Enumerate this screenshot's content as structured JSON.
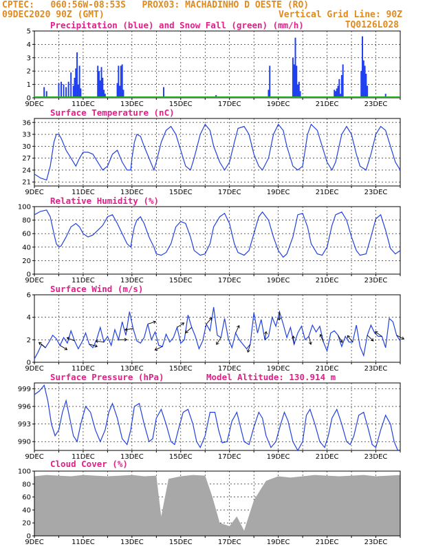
{
  "header": {
    "line1_left": "CPTEC:   060:56W-08:53S   PROX03: MACHADINHO D OESTE (RO)",
    "line2_left": "09DEC2020 90Z (GMT)",
    "line2_right": "Vertical Grid Line: 90Z",
    "line3_right": "TQ0126L028"
  },
  "colors": {
    "header": "#e08a1e",
    "title": "#e0208a",
    "line": "#2040e0",
    "precip_bar": "#2040f0",
    "snow": "#20b020",
    "cloud": "#a8a8a8",
    "grid": "#000000"
  },
  "x_tick_labels": [
    "9DEC",
    "11DEC",
    "13DEC",
    "15DEC",
    "17DEC",
    "19DEC",
    "21DEC",
    "23DEC"
  ],
  "chart_data": [
    {
      "type": "bar",
      "id": "precip",
      "title": "Precipitation (blue) and Snow Fall (green) (mm/h)",
      "ylim": [
        0,
        5
      ],
      "yticks": [
        0,
        1,
        2,
        3,
        4,
        5
      ],
      "x_range_days": [
        0,
        15
      ],
      "series": [
        {
          "name": "Precipitation",
          "x": [
            0.4,
            0.5,
            1.0,
            1.1,
            1.2,
            1.3,
            1.4,
            1.5,
            1.6,
            1.65,
            1.7,
            1.75,
            1.8,
            1.85,
            1.9,
            2.6,
            2.65,
            2.7,
            2.75,
            2.8,
            2.85,
            2.9,
            3.4,
            3.45,
            3.5,
            3.55,
            3.6,
            3.65,
            5.3,
            7.45,
            9.6,
            9.65,
            10.6,
            10.65,
            10.7,
            10.75,
            10.8,
            10.85,
            10.9,
            12.3,
            12.35,
            12.4,
            12.45,
            12.5,
            12.55,
            12.6,
            12.65,
            13.4,
            13.45,
            13.5,
            13.55,
            13.6,
            13.65,
            14.4
          ],
          "y": [
            0.8,
            0.5,
            1.1,
            1.2,
            1.0,
            0.8,
            1.2,
            1.9,
            0.9,
            1.5,
            2.2,
            3.4,
            1.0,
            2.4,
            0.7,
            2.4,
            2.0,
            1.3,
            2.3,
            1.5,
            0.6,
            0.3,
            1.1,
            2.4,
            0.9,
            2.4,
            2.5,
            0.6,
            0.8,
            0.2,
            0.6,
            2.4,
            3.0,
            2.5,
            4.5,
            2.4,
            1.0,
            1.2,
            0.5,
            0.6,
            0.5,
            0.7,
            0.9,
            1.4,
            0.3,
            1.7,
            2.5,
            2.0,
            4.6,
            2.8,
            2.4,
            1.8,
            0.9,
            0.3
          ]
        },
        {
          "name": "Snow Fall",
          "x": [
            0,
            15
          ],
          "y": [
            0.05,
            0.05
          ]
        }
      ]
    },
    {
      "type": "line",
      "id": "temp",
      "title": "Surface Temperature (nC)",
      "ylim": [
        20,
        37
      ],
      "yticks": [
        21,
        24,
        27,
        30,
        33,
        36
      ],
      "x": [
        0,
        0.25,
        0.5,
        0.65,
        0.8,
        0.9,
        1.0,
        1.1,
        1.3,
        1.5,
        1.7,
        1.85,
        2.0,
        2.2,
        2.4,
        2.6,
        2.8,
        3.0,
        3.2,
        3.4,
        3.6,
        3.8,
        3.95,
        4.0,
        4.1,
        4.2,
        4.35,
        4.5,
        4.7,
        4.9,
        5.0,
        5.2,
        5.4,
        5.6,
        5.8,
        6.0,
        6.2,
        6.4,
        6.55,
        6.8,
        7.0,
        7.2,
        7.35,
        7.6,
        7.8,
        8.0,
        8.2,
        8.35,
        8.6,
        8.8,
        9.0,
        9.2,
        9.35,
        9.6,
        9.8,
        10.0,
        10.2,
        10.35,
        10.6,
        10.8,
        11.0,
        11.2,
        11.35,
        11.6,
        11.8,
        12.0,
        12.2,
        12.35,
        12.6,
        12.8,
        13.0,
        13.2,
        13.35,
        13.6,
        13.8,
        14.0,
        14.2,
        14.4,
        14.6,
        14.8,
        15.0
      ],
      "y": [
        23,
        22,
        21.5,
        25,
        31,
        33,
        33,
        32,
        29,
        27,
        25,
        27,
        28.5,
        28.5,
        28,
        26,
        24,
        25,
        28,
        29,
        26,
        24,
        24,
        27,
        31,
        33,
        32.5,
        30,
        27,
        24,
        26,
        31,
        34,
        35,
        33,
        29,
        25,
        24,
        27,
        33,
        35.5,
        34,
        30,
        26,
        24,
        26,
        31,
        34.5,
        35,
        33,
        28,
        25,
        24,
        27,
        33,
        35.5,
        34,
        30,
        25,
        24,
        25,
        33,
        35.5,
        34,
        30,
        26,
        24,
        26,
        33,
        35,
        33,
        28,
        25,
        24,
        28,
        33,
        35,
        34,
        30,
        26,
        24
      ]
    },
    {
      "type": "line",
      "id": "rh",
      "title": "Relative Humidity (%)",
      "ylim": [
        0,
        100
      ],
      "yticks": [
        0,
        20,
        40,
        60,
        80,
        100
      ],
      "x": [
        0,
        0.25,
        0.5,
        0.65,
        0.8,
        0.9,
        1.0,
        1.1,
        1.3,
        1.5,
        1.7,
        1.85,
        2.0,
        2.2,
        2.4,
        2.6,
        2.8,
        3.0,
        3.2,
        3.4,
        3.6,
        3.8,
        3.95,
        4.0,
        4.1,
        4.2,
        4.35,
        4.5,
        4.7,
        4.9,
        5.0,
        5.2,
        5.4,
        5.6,
        5.8,
        6.0,
        6.2,
        6.4,
        6.55,
        6.8,
        7.0,
        7.2,
        7.35,
        7.6,
        7.8,
        8.0,
        8.2,
        8.35,
        8.6,
        8.8,
        9.0,
        9.2,
        9.35,
        9.6,
        9.8,
        10.0,
        10.2,
        10.35,
        10.6,
        10.8,
        11.0,
        11.2,
        11.35,
        11.6,
        11.8,
        12.0,
        12.2,
        12.35,
        12.6,
        12.8,
        13.0,
        13.2,
        13.35,
        13.6,
        13.8,
        14.0,
        14.2,
        14.4,
        14.6,
        14.8,
        15.0
      ],
      "y": [
        88,
        93,
        95,
        85,
        60,
        45,
        40,
        42,
        55,
        70,
        75,
        70,
        60,
        55,
        58,
        65,
        72,
        85,
        88,
        75,
        60,
        45,
        40,
        52,
        70,
        80,
        85,
        75,
        55,
        40,
        30,
        28,
        32,
        45,
        70,
        78,
        75,
        55,
        35,
        28,
        30,
        45,
        70,
        85,
        90,
        75,
        45,
        32,
        28,
        35,
        60,
        85,
        92,
        80,
        55,
        35,
        25,
        30,
        55,
        88,
        90,
        70,
        45,
        30,
        28,
        40,
        72,
        88,
        92,
        80,
        55,
        35,
        28,
        30,
        55,
        82,
        88,
        65,
        38,
        30,
        35
      ]
    },
    {
      "type": "line",
      "id": "wind",
      "title": "Surface Wind (m/s)",
      "ylim": [
        0,
        6
      ],
      "yticks": [
        0,
        2,
        4,
        6
      ],
      "x": [
        0,
        0.15,
        0.3,
        0.45,
        0.6,
        0.75,
        0.9,
        1.05,
        1.2,
        1.35,
        1.5,
        1.65,
        1.8,
        1.95,
        2.1,
        2.25,
        2.4,
        2.55,
        2.7,
        2.85,
        3.0,
        3.15,
        3.3,
        3.45,
        3.6,
        3.75,
        3.9,
        4.05,
        4.2,
        4.35,
        4.5,
        4.65,
        4.8,
        4.95,
        5.1,
        5.25,
        5.4,
        5.55,
        5.7,
        5.85,
        6.0,
        6.15,
        6.3,
        6.45,
        6.6,
        6.75,
        6.9,
        7.05,
        7.2,
        7.35,
        7.5,
        7.65,
        7.8,
        7.95,
        8.1,
        8.25,
        8.4,
        8.55,
        8.7,
        8.85,
        9.0,
        9.15,
        9.3,
        9.45,
        9.6,
        9.75,
        9.9,
        10.05,
        10.2,
        10.35,
        10.5,
        10.65,
        10.8,
        10.95,
        11.1,
        11.25,
        11.4,
        11.55,
        11.7,
        11.85,
        12.0,
        12.15,
        12.3,
        12.45,
        12.6,
        12.75,
        12.9,
        13.05,
        13.2,
        13.35,
        13.5,
        13.65,
        13.8,
        13.95,
        14.1,
        14.25,
        14.4,
        14.55,
        14.7,
        14.85,
        15.0
      ],
      "y": [
        0.3,
        0.9,
        1.6,
        1.3,
        1.8,
        2.4,
        2.1,
        1.5,
        2.2,
        1.7,
        2.8,
        1.9,
        1.2,
        1.8,
        2.6,
        1.6,
        1.3,
        2.0,
        3.1,
        1.8,
        2.3,
        1.5,
        2.9,
        2.0,
        3.6,
        2.4,
        4.5,
        3.0,
        1.9,
        1.7,
        2.2,
        3.4,
        2.0,
        2.7,
        1.5,
        1.4,
        2.5,
        1.8,
        2.2,
        3.1,
        1.7,
        2.0,
        4.2,
        3.1,
        2.3,
        1.2,
        1.9,
        3.4,
        2.8,
        4.9,
        2.4,
        2.2,
        3.9,
        2.1,
        1.3,
        2.6,
        2.0,
        1.6,
        1.2,
        1.6,
        4.4,
        2.6,
        3.8,
        2.0,
        2.3,
        4.0,
        3.2,
        4.5,
        3.4,
        2.2,
        3.1,
        1.6,
        2.6,
        3.2,
        2.0,
        2.3,
        3.3,
        2.7,
        3.2,
        1.8,
        1.0,
        2.6,
        2.8,
        2.4,
        1.4,
        2.3,
        1.8,
        1.8,
        3.3,
        1.4,
        0.6,
        2.4,
        3.3,
        2.6,
        2.3,
        2.3,
        1.3,
        3.9,
        3.6,
        2.4,
        1.9
      ]
    },
    {
      "type": "line",
      "id": "pres",
      "title": "Surface Pressure (hPa)",
      "subtitle": "Model Altitude: 130.914 m",
      "ylim": [
        988.5,
        1000
      ],
      "yticks": [
        990,
        993,
        996,
        999
      ],
      "x": [
        0,
        0.2,
        0.4,
        0.55,
        0.7,
        0.85,
        1.0,
        1.15,
        1.3,
        1.45,
        1.6,
        1.75,
        1.9,
        2.1,
        2.3,
        2.5,
        2.7,
        2.9,
        3.05,
        3.2,
        3.4,
        3.6,
        3.8,
        3.95,
        4.1,
        4.3,
        4.5,
        4.7,
        4.85,
        5.0,
        5.2,
        5.4,
        5.6,
        5.75,
        5.9,
        6.1,
        6.3,
        6.5,
        6.65,
        6.8,
        7.0,
        7.2,
        7.4,
        7.55,
        7.7,
        7.9,
        8.1,
        8.3,
        8.45,
        8.6,
        8.8,
        9.0,
        9.2,
        9.35,
        9.5,
        9.7,
        9.9,
        10.1,
        10.25,
        10.4,
        10.6,
        10.8,
        11.0,
        11.15,
        11.3,
        11.5,
        11.7,
        11.9,
        12.05,
        12.2,
        12.4,
        12.6,
        12.8,
        12.95,
        13.1,
        13.3,
        13.5,
        13.7,
        13.85,
        14.0,
        14.2,
        14.4,
        14.6,
        14.75,
        14.9,
        15.0
      ],
      "y": [
        998.0,
        998.6,
        999.6,
        997.0,
        993.0,
        991.0,
        992.0,
        995.0,
        997.0,
        994.0,
        991.0,
        990.0,
        993.0,
        996.0,
        995.0,
        992.0,
        990.0,
        992.0,
        995.0,
        996.5,
        994.0,
        990.5,
        989.5,
        992.0,
        996.0,
        996.5,
        993.0,
        990.0,
        990.5,
        994.0,
        995.5,
        993.0,
        990.0,
        989.5,
        992.0,
        995.0,
        995.5,
        993.0,
        990.0,
        989.0,
        991.0,
        995.0,
        995.0,
        992.0,
        989.8,
        990.0,
        993.5,
        995.0,
        992.5,
        990.0,
        989.5,
        992.5,
        995.0,
        994.0,
        991.0,
        989.0,
        990.0,
        993.0,
        995.0,
        993.5,
        990.0,
        988.5,
        990.0,
        994.5,
        995.5,
        993.0,
        990.0,
        989.0,
        991.0,
        994.0,
        995.5,
        993.0,
        990.0,
        989.5,
        991.0,
        994.5,
        995.0,
        992.0,
        989.5,
        989.0,
        992.0,
        994.5,
        993.0,
        990.0,
        988.5,
        988.6
      ]
    },
    {
      "type": "area",
      "id": "cloud",
      "title": "Cloud Cover (%)",
      "ylim": [
        0,
        100
      ],
      "yticks": [
        0,
        20,
        40,
        60,
        80,
        100
      ],
      "x": [
        0,
        0.5,
        1.0,
        1.5,
        2.0,
        2.5,
        3.0,
        3.5,
        4.0,
        4.5,
        5.0,
        5.2,
        5.5,
        6.0,
        6.5,
        7.0,
        7.3,
        7.6,
        8.0,
        8.3,
        8.6,
        9.0,
        9.5,
        10.0,
        10.5,
        11.0,
        11.5,
        12.0,
        12.5,
        13.0,
        13.5,
        14.0,
        14.5,
        15.0
      ],
      "y": [
        92,
        94,
        93,
        92,
        94,
        93,
        92,
        93,
        94,
        92,
        93,
        30,
        88,
        92,
        94,
        93,
        60,
        20,
        15,
        30,
        8,
        55,
        85,
        92,
        90,
        92,
        94,
        93,
        92,
        93,
        94,
        92,
        93,
        94
      ]
    }
  ]
}
